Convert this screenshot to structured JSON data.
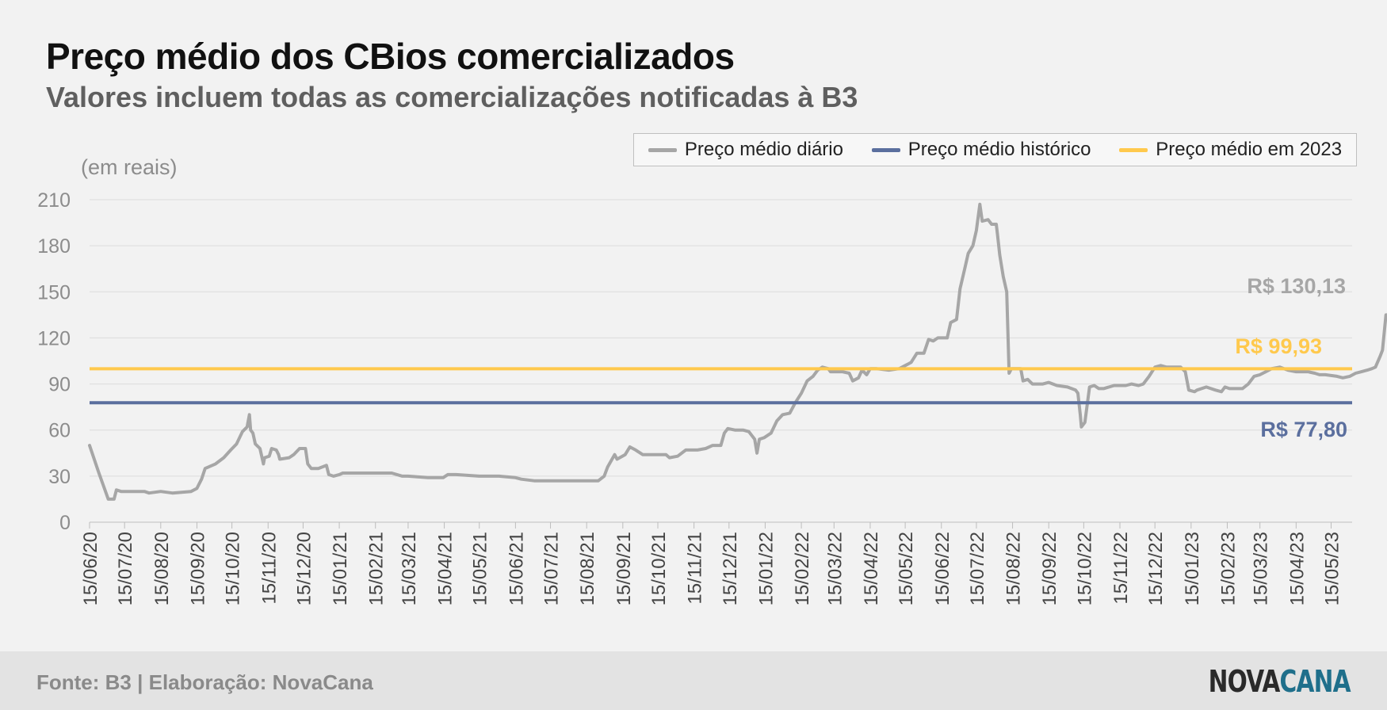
{
  "header": {
    "title": "Preço médio dos CBios comercializados",
    "subtitle": "Valores incluem todas as comercializações notificadas à B3"
  },
  "legend": {
    "items": [
      {
        "label": "Preço médio diário",
        "color": "#a6a6a6"
      },
      {
        "label": "Preço médio histórico",
        "color": "#5b6f9e"
      },
      {
        "label": "Preço médio em 2023",
        "color": "#ffc94d"
      }
    ]
  },
  "unit_label": "(em reais)",
  "annotations": {
    "last": "R$ 130,13",
    "avg2023": "R$ 99,93",
    "historic": "R$ 77,80"
  },
  "footer": {
    "source": "Fonte: B3 | Elaboração: NovaCana",
    "brand_part1": "NOVA",
    "brand_part2": "CANA"
  },
  "chart_data": {
    "type": "line",
    "ylim": [
      0,
      210
    ],
    "yticks": [
      0,
      30,
      60,
      90,
      120,
      150,
      180,
      210
    ],
    "grid": true,
    "legend_position": "top-right",
    "x_tick_labels": [
      "15/06/20",
      "15/07/20",
      "15/08/20",
      "15/09/20",
      "15/10/20",
      "15/11/20",
      "15/12/20",
      "15/01/21",
      "15/02/21",
      "15/03/21",
      "15/04/21",
      "15/05/21",
      "15/06/21",
      "15/07/21",
      "15/08/21",
      "15/09/21",
      "15/10/21",
      "15/11/21",
      "15/12/21",
      "15/01/22",
      "15/02/22",
      "15/03/22",
      "15/04/22",
      "15/05/22",
      "15/06/22",
      "15/07/22",
      "15/08/22",
      "15/09/22",
      "15/10/22",
      "15/11/22",
      "15/12/22",
      "15/01/23",
      "15/02/23",
      "15/03/23",
      "15/04/23",
      "15/05/23"
    ],
    "x_range": [
      "2020-06-15",
      "2023-06-02"
    ],
    "series": [
      {
        "name": "Preço médio diário",
        "color": "#a6a6a6",
        "points": [
          [
            "2020-06-15",
            50
          ],
          [
            "2020-06-23",
            32
          ],
          [
            "2020-07-01",
            15
          ],
          [
            "2020-07-06",
            15
          ],
          [
            "2020-07-08",
            21
          ],
          [
            "2020-07-12",
            20
          ],
          [
            "2020-08-01",
            20
          ],
          [
            "2020-08-05",
            19
          ],
          [
            "2020-08-15",
            20
          ],
          [
            "2020-08-25",
            19
          ],
          [
            "2020-09-10",
            20
          ],
          [
            "2020-09-15",
            22
          ],
          [
            "2020-09-19",
            28
          ],
          [
            "2020-09-22",
            35
          ],
          [
            "2020-10-01",
            38
          ],
          [
            "2020-10-08",
            42
          ],
          [
            "2020-10-14",
            47
          ],
          [
            "2020-10-19",
            51
          ],
          [
            "2020-10-24",
            59
          ],
          [
            "2020-10-28",
            62
          ],
          [
            "2020-10-30",
            70
          ],
          [
            "2020-10-31",
            60
          ],
          [
            "2020-11-02",
            58
          ],
          [
            "2020-11-04",
            51
          ],
          [
            "2020-11-08",
            48
          ],
          [
            "2020-11-11",
            38
          ],
          [
            "2020-11-12",
            42
          ],
          [
            "2020-11-16",
            43
          ],
          [
            "2020-11-18",
            48
          ],
          [
            "2020-11-22",
            47
          ],
          [
            "2020-11-24",
            44
          ],
          [
            "2020-11-25",
            41
          ],
          [
            "2020-12-03",
            42
          ],
          [
            "2020-12-07",
            44
          ],
          [
            "2020-12-12",
            48
          ],
          [
            "2020-12-17",
            48
          ],
          [
            "2020-12-19",
            38
          ],
          [
            "2020-12-22",
            35
          ],
          [
            "2020-12-28",
            35
          ],
          [
            "2021-01-04",
            37
          ],
          [
            "2021-01-06",
            31
          ],
          [
            "2021-01-10",
            30
          ],
          [
            "2021-01-15",
            31
          ],
          [
            "2021-01-18",
            32
          ],
          [
            "2021-02-15",
            32
          ],
          [
            "2021-03-01",
            32
          ],
          [
            "2021-03-10",
            30
          ],
          [
            "2021-03-15",
            30
          ],
          [
            "2021-04-01",
            29
          ],
          [
            "2021-04-14",
            29
          ],
          [
            "2021-04-18",
            31
          ],
          [
            "2021-04-25",
            31
          ],
          [
            "2021-05-15",
            30
          ],
          [
            "2021-06-01",
            30
          ],
          [
            "2021-06-15",
            29
          ],
          [
            "2021-06-20",
            28
          ],
          [
            "2021-07-01",
            27
          ],
          [
            "2021-08-15",
            27
          ],
          [
            "2021-08-25",
            27
          ],
          [
            "2021-08-30",
            30
          ],
          [
            "2021-09-02",
            36
          ],
          [
            "2021-09-05",
            40
          ],
          [
            "2021-09-08",
            44
          ],
          [
            "2021-09-10",
            41
          ],
          [
            "2021-09-17",
            44
          ],
          [
            "2021-09-21",
            49
          ],
          [
            "2021-09-26",
            47
          ],
          [
            "2021-10-02",
            44
          ],
          [
            "2021-10-15",
            44
          ],
          [
            "2021-10-22",
            44
          ],
          [
            "2021-10-25",
            42
          ],
          [
            "2021-11-01",
            43
          ],
          [
            "2021-11-08",
            47
          ],
          [
            "2021-11-18",
            47
          ],
          [
            "2021-11-25",
            48
          ],
          [
            "2021-12-01",
            50
          ],
          [
            "2021-12-08",
            50
          ],
          [
            "2021-12-11",
            58
          ],
          [
            "2021-12-14",
            61
          ],
          [
            "2021-12-20",
            60
          ],
          [
            "2021-12-27",
            60
          ],
          [
            "2022-01-01",
            59
          ],
          [
            "2022-01-06",
            54
          ],
          [
            "2022-01-08",
            45
          ],
          [
            "2022-01-10",
            54
          ],
          [
            "2022-01-14",
            55
          ],
          [
            "2022-01-20",
            58
          ],
          [
            "2022-01-25",
            66
          ],
          [
            "2022-01-30",
            70
          ],
          [
            "2022-02-05",
            71
          ],
          [
            "2022-02-10",
            78
          ],
          [
            "2022-02-15",
            84
          ],
          [
            "2022-02-20",
            92
          ],
          [
            "2022-02-25",
            95
          ],
          [
            "2022-03-01",
            99
          ],
          [
            "2022-03-05",
            101
          ],
          [
            "2022-03-10",
            100
          ],
          [
            "2022-03-12",
            98
          ],
          [
            "2022-03-22",
            98
          ],
          [
            "2022-03-28",
            97
          ],
          [
            "2022-03-31",
            92
          ],
          [
            "2022-04-05",
            94
          ],
          [
            "2022-04-08",
            99
          ],
          [
            "2022-04-12",
            96
          ],
          [
            "2022-04-15",
            100
          ],
          [
            "2022-04-20",
            100
          ],
          [
            "2022-05-01",
            99
          ],
          [
            "2022-05-10",
            100
          ],
          [
            "2022-05-15",
            102
          ],
          [
            "2022-05-20",
            104
          ],
          [
            "2022-05-25",
            110
          ],
          [
            "2022-05-31",
            110
          ],
          [
            "2022-06-04",
            119
          ],
          [
            "2022-06-08",
            118
          ],
          [
            "2022-06-12",
            120
          ],
          [
            "2022-06-20",
            120
          ],
          [
            "2022-06-23",
            130
          ],
          [
            "2022-06-28",
            132
          ],
          [
            "2022-07-01",
            152
          ],
          [
            "2022-07-05",
            165
          ],
          [
            "2022-07-08",
            175
          ],
          [
            "2022-07-12",
            180
          ],
          [
            "2022-07-15",
            190
          ],
          [
            "2022-07-18",
            207
          ],
          [
            "2022-07-20",
            196
          ],
          [
            "2022-07-25",
            197
          ],
          [
            "2022-07-28",
            194
          ],
          [
            "2022-08-01",
            194
          ],
          [
            "2022-08-02",
            188
          ],
          [
            "2022-08-04",
            174
          ],
          [
            "2022-08-07",
            160
          ],
          [
            "2022-08-10",
            150
          ],
          [
            "2022-08-12",
            97
          ],
          [
            "2022-08-14",
            100
          ],
          [
            "2022-08-18",
            100
          ],
          [
            "2022-08-22",
            100
          ],
          [
            "2022-08-24",
            92
          ],
          [
            "2022-08-28",
            93
          ],
          [
            "2022-09-01",
            90
          ],
          [
            "2022-09-10",
            90
          ],
          [
            "2022-09-15",
            91
          ],
          [
            "2022-09-22",
            89
          ],
          [
            "2022-10-01",
            88
          ],
          [
            "2022-10-08",
            86
          ],
          [
            "2022-10-10",
            84
          ],
          [
            "2022-10-12",
            70
          ],
          [
            "2022-10-13",
            62
          ],
          [
            "2022-10-16",
            65
          ],
          [
            "2022-10-20",
            88
          ],
          [
            "2022-10-24",
            89
          ],
          [
            "2022-10-28",
            87
          ],
          [
            "2022-11-01",
            87
          ],
          [
            "2022-11-10",
            89
          ],
          [
            "2022-11-20",
            89
          ],
          [
            "2022-11-25",
            90
          ],
          [
            "2022-12-01",
            89
          ],
          [
            "2022-12-05",
            90
          ],
          [
            "2022-12-10",
            95
          ],
          [
            "2022-12-15",
            101
          ],
          [
            "2022-12-20",
            102
          ],
          [
            "2022-12-25",
            101
          ],
          [
            "2023-01-01",
            101
          ],
          [
            "2023-01-06",
            101
          ],
          [
            "2023-01-10",
            98
          ],
          [
            "2023-01-13",
            86
          ],
          [
            "2023-01-18",
            85
          ],
          [
            "2023-01-20",
            86
          ],
          [
            "2023-01-28",
            88
          ],
          [
            "2023-02-05",
            86
          ],
          [
            "2023-02-10",
            85
          ],
          [
            "2023-02-13",
            88
          ],
          [
            "2023-02-17",
            87
          ],
          [
            "2023-02-28",
            87
          ],
          [
            "2023-03-05",
            90
          ],
          [
            "2023-03-10",
            95
          ],
          [
            "2023-03-15",
            96
          ],
          [
            "2023-03-20",
            98
          ],
          [
            "2023-03-25",
            100
          ],
          [
            "2023-04-01",
            101
          ],
          [
            "2023-04-08",
            99
          ],
          [
            "2023-04-15",
            98
          ],
          [
            "2023-04-25",
            98
          ],
          [
            "2023-05-01",
            97
          ],
          [
            "2023-05-05",
            96
          ],
          [
            "2023-05-10",
            96
          ],
          [
            "2023-05-20",
            95
          ],
          [
            "2023-05-25",
            94
          ],
          [
            "2023-05-31",
            95
          ],
          [
            "2023-06-05",
            97
          ],
          [
            "2023-06-10",
            98
          ],
          [
            "2023-06-15",
            99
          ],
          [
            "2023-06-19",
            100
          ],
          [
            "2023-06-22",
            101
          ],
          [
            "2023-06-26",
            108
          ],
          [
            "2023-06-28",
            112
          ],
          [
            "2023-07-01",
            135
          ],
          [
            "2023-07-05",
            135
          ],
          [
            "2023-07-08",
            131
          ]
        ]
      },
      {
        "name": "Preço médio histórico",
        "color": "#5b6f9e",
        "constant": 77.8
      },
      {
        "name": "Preço médio em 2023",
        "color": "#ffc94d",
        "constant": 99.93
      }
    ]
  }
}
